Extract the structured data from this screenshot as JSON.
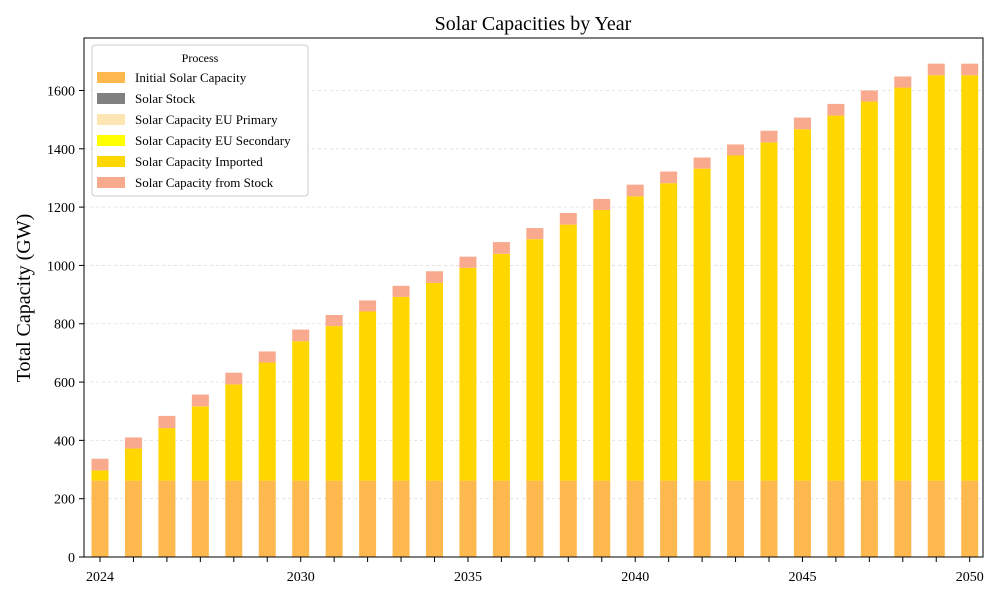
{
  "chart_data": {
    "type": "bar",
    "stacked": true,
    "title": "Solar Capacities by Year",
    "xlabel": "",
    "ylabel": "Total Capacity (GW)",
    "ylim": [
      0,
      1780
    ],
    "yticks": [
      "0",
      "200",
      "400",
      "600",
      "800",
      "1000",
      "1200",
      "1400",
      "1600"
    ],
    "xtick_labels": {
      "2024": "2024",
      "2030": "2030",
      "2035": "2035",
      "2040": "2040",
      "2045": "2045",
      "2050": "2050"
    },
    "grid": "y-dashed",
    "legend_placement": "top-left",
    "legend_title": "Process",
    "categories": [
      "2024",
      "2025",
      "2026",
      "2027",
      "2028",
      "2029",
      "2030",
      "2031",
      "2032",
      "2033",
      "2034",
      "2035",
      "2036",
      "2037",
      "2038",
      "2039",
      "2040",
      "2041",
      "2042",
      "2043",
      "2044",
      "2045",
      "2046",
      "2047",
      "2048",
      "2049",
      "2050"
    ],
    "series": [
      {
        "name": "Initial Solar Capacity",
        "color": "#FDB84E",
        "values": [
          262,
          262,
          262,
          262,
          262,
          262,
          262,
          262,
          262,
          262,
          262,
          262,
          262,
          262,
          262,
          262,
          262,
          262,
          262,
          262,
          262,
          262,
          262,
          262,
          262,
          262,
          262
        ]
      },
      {
        "name": "Solar Stock",
        "color": "#808080",
        "values": [
          0,
          0,
          0,
          0,
          0,
          0,
          0,
          0,
          0,
          0,
          0,
          0,
          0,
          0,
          0,
          0,
          0,
          0,
          0,
          0,
          0,
          0,
          0,
          0,
          0,
          0,
          0
        ]
      },
      {
        "name": "Solar Capacity EU Primary",
        "color": "#FDE5B4",
        "values": [
          0,
          0,
          0,
          0,
          0,
          0,
          0,
          0,
          0,
          0,
          0,
          0,
          0,
          0,
          0,
          0,
          0,
          0,
          0,
          0,
          0,
          0,
          0,
          0,
          0,
          0,
          0
        ]
      },
      {
        "name": "Solar Capacity EU Secondary",
        "color": "#FFFF00",
        "values": [
          0,
          0,
          0,
          0,
          0,
          0,
          0,
          0,
          0,
          0,
          0,
          0,
          0,
          0,
          0,
          0,
          0,
          0,
          0,
          0,
          0,
          0,
          0,
          0,
          0,
          0,
          0
        ]
      },
      {
        "name": "Solar Capacity Imported",
        "color": "#FFD700",
        "values": [
          35,
          110,
          180,
          255,
          330,
          405,
          478,
          530,
          580,
          630,
          678,
          730,
          778,
          828,
          878,
          928,
          975,
          1020,
          1070,
          1115,
          1160,
          1205,
          1252,
          1300,
          1348,
          1390,
          1390
        ]
      },
      {
        "name": "Solar Capacity from Stock",
        "color": "#F8A98E",
        "values": [
          40,
          38,
          42,
          40,
          40,
          38,
          40,
          38,
          38,
          38,
          40,
          38,
          40,
          38,
          40,
          38,
          40,
          40,
          38,
          38,
          40,
          40,
          40,
          38,
          38,
          40,
          40
        ]
      }
    ]
  }
}
